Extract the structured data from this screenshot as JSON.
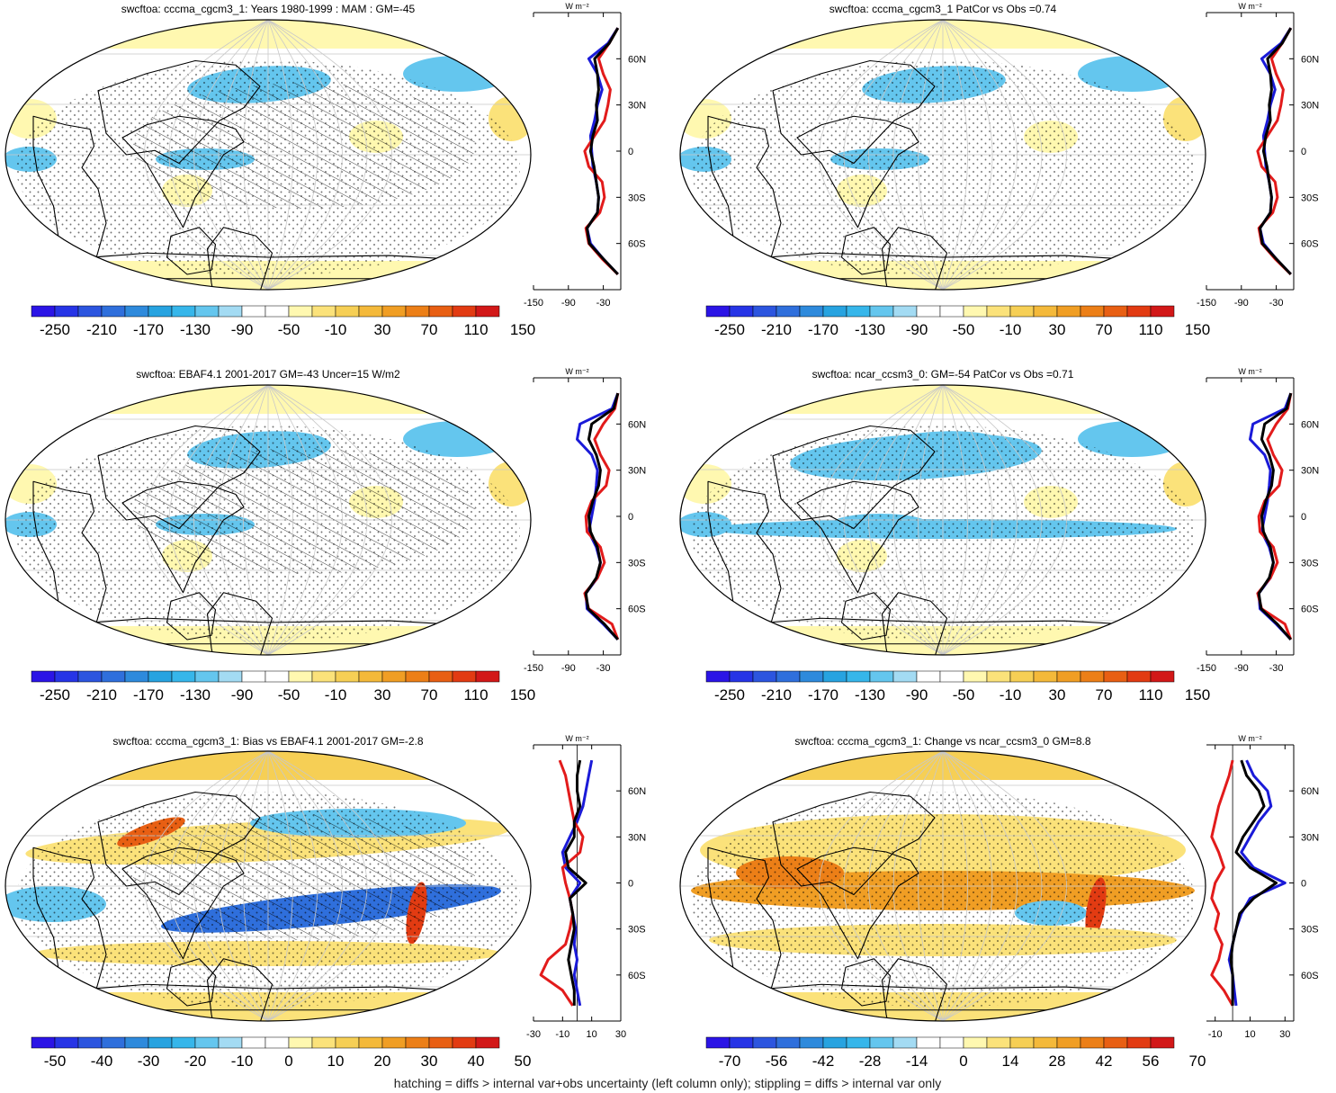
{
  "footnote": "hatching = diffs > internal var+obs uncertainty (left column only); stippling = diffs > internal var only",
  "zonal_unit": "W m⁻²",
  "lat_labels": [
    "60N",
    "30N",
    "0",
    "30S",
    "60S"
  ],
  "colors": {
    "scale": [
      "#2b14e6",
      "#2634e6",
      "#2c55df",
      "#2f6fdc",
      "#2e8adc",
      "#27a3e0",
      "#36b6ea",
      "#64c6ee",
      "#a3dbf3",
      "#ffffff",
      "#ffffff",
      "#fff8b0",
      "#fbe27a",
      "#f6cf55",
      "#f4b93a",
      "#f09e24",
      "#ec7f17",
      "#e85f13",
      "#e23b12",
      "#d21818"
    ],
    "land_outline": "#000000",
    "grid": "#c8c8c8",
    "line_model": "#e21b1b",
    "line_obs": "#1a1ad8",
    "line_ref": "#000000"
  },
  "chart_data": [
    {
      "type": "heatmap",
      "title": "swcftoa: cccma_cgcm3_1: Years 1980-1999 : MAM : GM=-45",
      "colorbar_labels": [
        "-250",
        "-210",
        "-170",
        "-130",
        "-90",
        "-50",
        "-10",
        "30",
        "70",
        "110",
        "150"
      ],
      "projection": "Robinson",
      "zonal_mean": {
        "xlim": [
          -150,
          0
        ],
        "x_tick_labels": [
          "-150",
          "-90",
          "-30"
        ],
        "ylim": [
          -90,
          90
        ],
        "lat": [
          80,
          70,
          60,
          50,
          40,
          30,
          20,
          10,
          0,
          -10,
          -20,
          -30,
          -40,
          -50,
          -60,
          -70,
          -80
        ],
        "model": [
          -5,
          -20,
          -38,
          -30,
          -18,
          -22,
          -28,
          -45,
          -62,
          -55,
          -32,
          -28,
          -36,
          -60,
          -55,
          -32,
          -5
        ],
        "obs": [
          -5,
          -22,
          -55,
          -40,
          -32,
          -40,
          -45,
          -52,
          -50,
          -48,
          -42,
          -38,
          -40,
          -58,
          -52,
          -30,
          -5
        ],
        "ref": [
          -5,
          -20,
          -45,
          -40,
          -38,
          -42,
          -40,
          -48,
          -52,
          -46,
          -42,
          -38,
          -40,
          -58,
          -54,
          -30,
          -5
        ]
      }
    },
    {
      "type": "heatmap",
      "title": "swcftoa: cccma_cgcm3_1 PatCor vs Obs =0.74",
      "colorbar_labels": [
        "-250",
        "-210",
        "-170",
        "-130",
        "-90",
        "-50",
        "-10",
        "30",
        "70",
        "110",
        "150"
      ],
      "projection": "Robinson",
      "zonal_mean": {
        "xlim": [
          -150,
          0
        ],
        "x_tick_labels": [
          "-150",
          "-90",
          "-30"
        ],
        "ylim": [
          -90,
          90
        ],
        "lat": [
          80,
          70,
          60,
          50,
          40,
          30,
          20,
          10,
          0,
          -10,
          -20,
          -30,
          -40,
          -50,
          -60,
          -70,
          -80
        ],
        "model": [
          -5,
          -20,
          -38,
          -30,
          -18,
          -22,
          -28,
          -45,
          -62,
          -55,
          -32,
          -28,
          -36,
          -60,
          -55,
          -32,
          -5
        ],
        "obs": [
          -5,
          -22,
          -55,
          -40,
          -32,
          -40,
          -45,
          -52,
          -50,
          -48,
          -42,
          -38,
          -40,
          -58,
          -52,
          -30,
          -5
        ],
        "ref": [
          -5,
          -20,
          -45,
          -40,
          -38,
          -42,
          -40,
          -48,
          -52,
          -46,
          -42,
          -38,
          -40,
          -58,
          -54,
          -30,
          -5
        ]
      }
    },
    {
      "type": "heatmap",
      "title": "swcftoa: EBAF4.1 2001-2017 GM=-43 Uncer=15 W/m2",
      "colorbar_labels": [
        "-250",
        "-210",
        "-170",
        "-130",
        "-90",
        "-50",
        "-10",
        "30",
        "70",
        "110",
        "150"
      ],
      "projection": "Robinson",
      "zonal_mean": {
        "xlim": [
          -150,
          0
        ],
        "x_tick_labels": [
          "-150",
          "-90",
          "-30"
        ],
        "ylim": [
          -90,
          90
        ],
        "lat": [
          80,
          70,
          60,
          50,
          40,
          30,
          20,
          10,
          0,
          -10,
          -20,
          -30,
          -40,
          -50,
          -60,
          -70,
          -80
        ],
        "model": [
          -5,
          -10,
          -30,
          -45,
          -35,
          -20,
          -25,
          -50,
          -60,
          -58,
          -35,
          -28,
          -40,
          -62,
          -55,
          -15,
          -5
        ],
        "obs": [
          -5,
          -15,
          -70,
          -75,
          -50,
          -40,
          -42,
          -45,
          -50,
          -55,
          -42,
          -35,
          -40,
          -60,
          -58,
          -30,
          -5
        ],
        "ref": [
          -5,
          -12,
          -50,
          -55,
          -42,
          -35,
          -38,
          -48,
          -55,
          -52,
          -40,
          -35,
          -42,
          -60,
          -56,
          -28,
          -5
        ]
      }
    },
    {
      "type": "heatmap",
      "title": "swcftoa: ncar_ccsm3_0: GM=-54 PatCor vs Obs =0.71",
      "colorbar_labels": [
        "-250",
        "-210",
        "-170",
        "-130",
        "-90",
        "-50",
        "-10",
        "30",
        "70",
        "110",
        "150"
      ],
      "projection": "Robinson",
      "zonal_mean": {
        "xlim": [
          -150,
          0
        ],
        "x_tick_labels": [
          "-150",
          "-90",
          "-30"
        ],
        "ylim": [
          -90,
          90
        ],
        "lat": [
          80,
          70,
          60,
          50,
          40,
          30,
          20,
          10,
          0,
          -10,
          -20,
          -30,
          -40,
          -50,
          -60,
          -70,
          -80
        ],
        "model": [
          -5,
          -10,
          -30,
          -45,
          -35,
          -20,
          -25,
          -50,
          -60,
          -58,
          -35,
          -28,
          -40,
          -62,
          -55,
          -15,
          -5
        ],
        "obs": [
          -5,
          -15,
          -70,
          -75,
          -50,
          -40,
          -42,
          -45,
          -50,
          -55,
          -42,
          -35,
          -40,
          -60,
          -58,
          -30,
          -5
        ],
        "ref": [
          -5,
          -12,
          -50,
          -55,
          -42,
          -35,
          -38,
          -48,
          -55,
          -52,
          -40,
          -35,
          -42,
          -60,
          -56,
          -28,
          -5
        ]
      }
    },
    {
      "type": "heatmap",
      "title": "swcftoa: cccma_cgcm3_1: Bias vs EBAF4.1 2001-2017 GM=-2.8",
      "colorbar_labels": [
        "-50",
        "-40",
        "-30",
        "-20",
        "-10",
        "0",
        "10",
        "20",
        "30",
        "40",
        "50"
      ],
      "projection": "Robinson",
      "zonal_mean": {
        "xlim": [
          -30,
          30
        ],
        "x_tick_labels": [
          "-30",
          "-10",
          "10",
          "30"
        ],
        "ylim": [
          -90,
          90
        ],
        "lat": [
          80,
          70,
          60,
          50,
          40,
          30,
          20,
          10,
          0,
          -10,
          -20,
          -30,
          -40,
          -50,
          -60,
          -70,
          -80
        ],
        "model": [
          -12,
          -8,
          -6,
          -4,
          -2,
          4,
          2,
          -10,
          -8,
          -5,
          -3,
          -5,
          -8,
          -20,
          -25,
          -10,
          -3
        ],
        "obs": [
          10,
          8,
          6,
          4,
          0,
          -5,
          -10,
          -8,
          2,
          -5,
          -3,
          -1,
          -2,
          0,
          -2,
          0,
          2
        ],
        "ref": [
          2,
          0,
          0,
          2,
          -2,
          -2,
          -8,
          -6,
          6,
          -5,
          -3,
          -2,
          -4,
          -6,
          -4,
          -2,
          -2
        ]
      }
    },
    {
      "type": "heatmap",
      "title": "swcftoa: cccma_cgcm3_1: Change vs ncar_ccsm3_0 GM=8.8",
      "colorbar_labels": [
        "-70",
        "-56",
        "-42",
        "-28",
        "-14",
        "0",
        "14",
        "28",
        "42",
        "56",
        "70"
      ],
      "projection": "Robinson",
      "zonal_mean": {
        "xlim": [
          -15,
          35
        ],
        "x_tick_labels": [
          "-10",
          "10",
          "30"
        ],
        "ylim": [
          -90,
          90
        ],
        "lat": [
          80,
          70,
          60,
          50,
          40,
          30,
          20,
          10,
          0,
          -10,
          -20,
          -30,
          -40,
          -50,
          -60,
          -70,
          -80
        ],
        "model": [
          0,
          -2,
          -5,
          -8,
          -10,
          -12,
          -8,
          -5,
          -10,
          -12,
          -8,
          -10,
          -6,
          -8,
          -12,
          -5,
          0
        ],
        "obs": [
          8,
          12,
          20,
          22,
          15,
          10,
          5,
          12,
          30,
          10,
          5,
          2,
          0,
          -2,
          0,
          1,
          2
        ],
        "ref": [
          5,
          8,
          15,
          18,
          12,
          6,
          2,
          10,
          25,
          12,
          4,
          2,
          0,
          -1,
          0,
          0,
          0
        ]
      }
    }
  ]
}
